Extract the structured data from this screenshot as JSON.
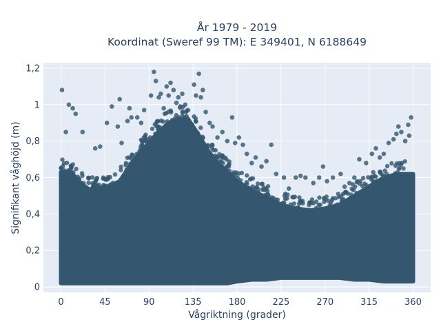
{
  "chart_data": {
    "type": "scatter",
    "title_lines": [
      "År 1979 - 2019",
      "Koordinat (Sweref 99 TM): E 349401, N 6188649"
    ],
    "xlabel": "Vågriktning (grader)",
    "ylabel": "Signifikant våghöjd (m)",
    "xlim": [
      -18,
      378
    ],
    "ylim": [
      -0.03,
      1.23
    ],
    "x_ticks": [
      0,
      45,
      90,
      135,
      180,
      225,
      270,
      315,
      360
    ],
    "x_tick_labels": [
      "0",
      "45",
      "90",
      "135",
      "180",
      "225",
      "270",
      "315",
      "360"
    ],
    "y_ticks": [
      0,
      0.2,
      0.4,
      0.6,
      0.8,
      1,
      1.2
    ],
    "y_tick_labels": [
      "0",
      "0,2",
      "0,4",
      "0,6",
      "0,8",
      "1",
      "1,2"
    ],
    "grid": true,
    "marker_color": "#34566e",
    "background_color": "#e5ecf6",
    "dense_band": {
      "x": [
        0,
        10,
        20,
        30,
        45,
        60,
        75,
        90,
        100,
        110,
        120,
        130,
        140,
        150,
        160,
        170,
        180,
        195,
        210,
        225,
        240,
        255,
        270,
        285,
        300,
        315,
        330,
        345,
        360
      ],
      "y_lower": [
        0.02,
        0.02,
        0.02,
        0.02,
        0.02,
        0.02,
        0.02,
        0.02,
        0.02,
        0.02,
        0.02,
        0.02,
        0.02,
        0.02,
        0.02,
        0.02,
        0.03,
        0.04,
        0.04,
        0.05,
        0.05,
        0.05,
        0.05,
        0.05,
        0.04,
        0.04,
        0.03,
        0.03,
        0.03
      ],
      "y_upper": [
        0.63,
        0.63,
        0.57,
        0.53,
        0.54,
        0.58,
        0.7,
        0.79,
        0.85,
        0.9,
        0.92,
        0.92,
        0.84,
        0.75,
        0.68,
        0.63,
        0.58,
        0.53,
        0.49,
        0.45,
        0.43,
        0.42,
        0.43,
        0.45,
        0.5,
        0.55,
        0.6,
        0.62,
        0.62
      ]
    },
    "points": [
      [
        1,
        1.08
      ],
      [
        5,
        0.85
      ],
      [
        8,
        1.0
      ],
      [
        12,
        0.98
      ],
      [
        15,
        0.95
      ],
      [
        22,
        0.85
      ],
      [
        35,
        0.76
      ],
      [
        40,
        0.77
      ],
      [
        47,
        0.9
      ],
      [
        52,
        0.99
      ],
      [
        60,
        1.03
      ],
      [
        58,
        0.88
      ],
      [
        62,
        0.79
      ],
      [
        68,
        0.91
      ],
      [
        70,
        0.98
      ],
      [
        72,
        0.93
      ],
      [
        78,
        0.93
      ],
      [
        82,
        0.9
      ],
      [
        85,
        0.97
      ],
      [
        92,
        1.05
      ],
      [
        95,
        1.18
      ],
      [
        97,
        1.13
      ],
      [
        100,
        1.04
      ],
      [
        102,
        1.06
      ],
      [
        105,
        0.98
      ],
      [
        108,
        1.1
      ],
      [
        110,
        1.05
      ],
      [
        112,
        1.12
      ],
      [
        115,
        1.08
      ],
      [
        118,
        1.01
      ],
      [
        120,
        1.04
      ],
      [
        122,
        0.99
      ],
      [
        124,
        1.06
      ],
      [
        127,
        1.0
      ],
      [
        130,
        0.97
      ],
      [
        136,
        1.11
      ],
      [
        138,
        1.05
      ],
      [
        141,
        1.17
      ],
      [
        143,
        1.04
      ],
      [
        145,
        1.08
      ],
      [
        148,
        0.96
      ],
      [
        152,
        0.9
      ],
      [
        155,
        0.88
      ],
      [
        160,
        0.82
      ],
      [
        165,
        0.85
      ],
      [
        170,
        0.8
      ],
      [
        175,
        0.93
      ],
      [
        178,
        0.79
      ],
      [
        182,
        0.82
      ],
      [
        186,
        0.78
      ],
      [
        190,
        0.73
      ],
      [
        195,
        0.68
      ],
      [
        199,
        0.71
      ],
      [
        205,
        0.66
      ],
      [
        210,
        0.69
      ],
      [
        215,
        0.78
      ],
      [
        220,
        0.62
      ],
      [
        228,
        0.6
      ],
      [
        233,
        0.54
      ],
      [
        240,
        0.6
      ],
      [
        245,
        0.61
      ],
      [
        250,
        0.6
      ],
      [
        258,
        0.57
      ],
      [
        264,
        0.6
      ],
      [
        268,
        0.66
      ],
      [
        272,
        0.58
      ],
      [
        278,
        0.6
      ],
      [
        286,
        0.62
      ],
      [
        290,
        0.55
      ],
      [
        295,
        0.57
      ],
      [
        300,
        0.6
      ],
      [
        305,
        0.7
      ],
      [
        312,
        0.68
      ],
      [
        318,
        0.73
      ],
      [
        322,
        0.76
      ],
      [
        326,
        0.71
      ],
      [
        330,
        0.73
      ],
      [
        335,
        0.79
      ],
      [
        340,
        0.81
      ],
      [
        343,
        0.84
      ],
      [
        345,
        0.88
      ],
      [
        348,
        0.85
      ],
      [
        352,
        0.8
      ],
      [
        355,
        0.89
      ],
      [
        358,
        0.93
      ],
      [
        356,
        0.83
      ]
    ]
  }
}
